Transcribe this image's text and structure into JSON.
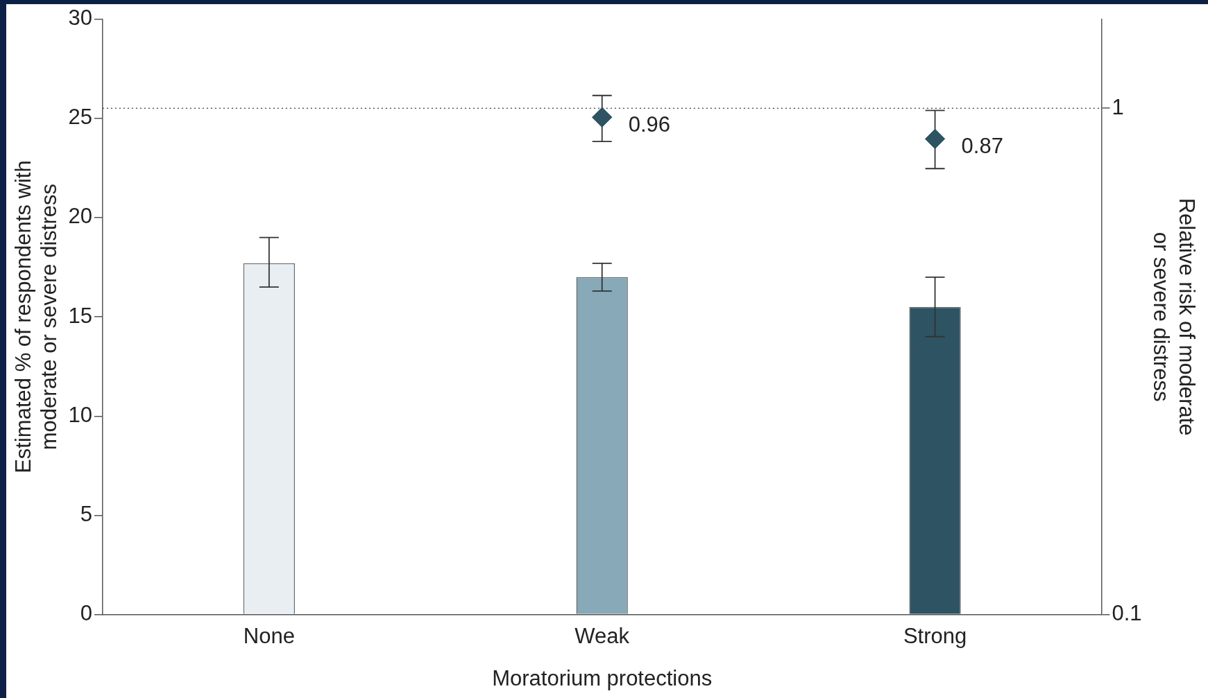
{
  "chart_data": {
    "type": "bar",
    "xlabel": "Moratorium protections",
    "ylabel": "Estimated % of respondents with\nmoderate or severe distress",
    "y2label": "Relative risk of moderate\nor severe distress",
    "categories": [
      "None",
      "Weak",
      "Strong"
    ],
    "series": [
      {
        "colors": [
          "#e8eef2",
          "#87a9b8",
          "#2e5463"
        ],
        "values": [
          17.7,
          17.0,
          15.5
        ],
        "errors": [
          [
            16.5,
            19.0
          ],
          [
            16.3,
            17.7
          ],
          [
            14.0,
            17.0
          ]
        ]
      },
      {
        "type": "scatter",
        "axis": "y2",
        "x": [
          "Weak",
          "Strong"
        ],
        "values": [
          0.96,
          0.87
        ],
        "errors": [
          [
            0.86,
            1.06
          ],
          [
            0.76,
            0.99
          ]
        ],
        "value_labels": [
          "0.96",
          "0.87"
        ],
        "color": "#2e5463",
        "marker": "diamond"
      }
    ],
    "ylim": [
      0,
      30
    ],
    "yticks": [
      0,
      5,
      10,
      15,
      20,
      25,
      30
    ],
    "y2lim": [
      0.1,
      1.5
    ],
    "y2ticks": [
      0.1,
      1
    ],
    "log": "y2",
    "ref_lines": [
      {
        "axis": "y2",
        "value": 1,
        "line_style": "dotted",
        "color": "#555555"
      }
    ]
  }
}
